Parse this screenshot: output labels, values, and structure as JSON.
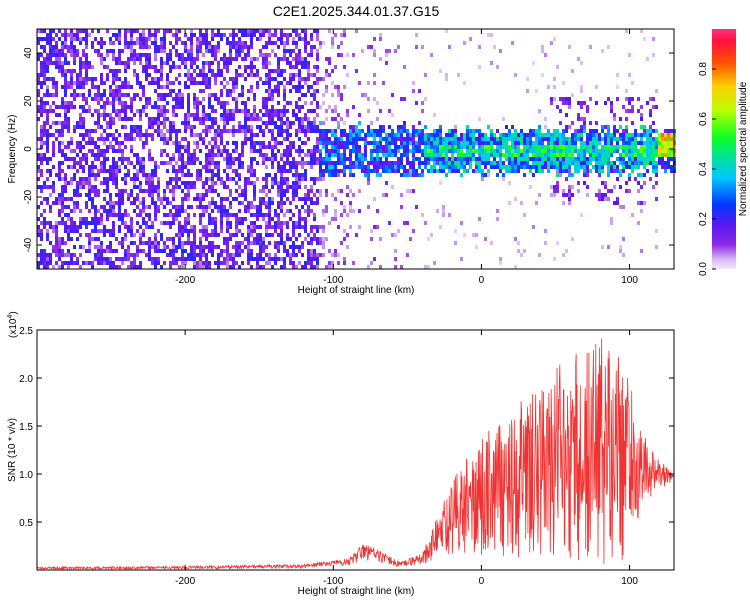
{
  "title": "C2E1.2025.344.01.37.G15",
  "chart_data": [
    {
      "type": "heatmap",
      "xlabel": "Height of straight line (km)",
      "ylabel": "Frequency (Hz)",
      "xlim": [
        -300,
        130
      ],
      "ylim": [
        -50,
        50
      ],
      "xticks": [
        -200,
        -100,
        0,
        100
      ],
      "yticks": [
        -40,
        -20,
        0,
        20,
        40
      ],
      "colorbar": {
        "label": "Normalized spectral amplitude",
        "range": [
          0,
          0.96
        ],
        "ticks": [
          "0.0",
          "0.2",
          "0.4",
          "0.6",
          "0.8"
        ],
        "tick_values": [
          0,
          0.2,
          0.4,
          0.6,
          0.8
        ]
      },
      "regions": [
        {
          "x_range": [
            -300,
            -110
          ],
          "freq_range": [
            -50,
            50
          ],
          "amplitude": "0.05-0.35"
        },
        {
          "x_range": [
            -110,
            120
          ],
          "freq_center": 0,
          "freq_halfwidth": 8,
          "amplitude": "0.2-0.6"
        },
        {
          "x_range": [
            120,
            130
          ],
          "freq_center": 2,
          "amplitude": "0.7-0.9"
        }
      ]
    },
    {
      "type": "line",
      "xlabel": "Height of straight line (km)",
      "ylabel": "SNR (10 * v/v)",
      "y_multiplier": "(x10",
      "y_multiplier_exp": "4",
      "y_multiplier_close": ")",
      "xlim": [
        -300,
        130
      ],
      "ylim": [
        0,
        2.5
      ],
      "xticks": [
        -200,
        -100,
        0,
        100
      ],
      "yticks": [
        0.5,
        1.0,
        1.5,
        2.0,
        2.5
      ],
      "ytick_labels": [
        "0.5",
        "1.0",
        "1.5",
        "2.0",
        "2.5"
      ],
      "color": "#f03232",
      "series_envelope": {
        "x": [
          -300,
          -200,
          -120,
          -90,
          -80,
          -70,
          -55,
          -40,
          -30,
          -20,
          -10,
          0,
          10,
          20,
          30,
          40,
          50,
          60,
          70,
          80,
          90,
          100,
          105,
          110,
          120,
          130
        ],
        "upper": [
          0.03,
          0.04,
          0.06,
          0.12,
          0.28,
          0.22,
          0.08,
          0.18,
          0.55,
          0.9,
          1.2,
          1.4,
          1.5,
          1.6,
          1.9,
          1.85,
          2.1,
          2.25,
          2.3,
          2.45,
          2.35,
          2.1,
          1.6,
          1.4,
          1.15,
          1.05
        ],
        "lower": [
          0.01,
          0.01,
          0.02,
          0.05,
          0.1,
          0.08,
          0.03,
          0.06,
          0.1,
          0.1,
          0.12,
          0.15,
          0.15,
          0.12,
          0.1,
          0.08,
          0.08,
          0.06,
          0.05,
          0.05,
          0.05,
          0.05,
          0.4,
          0.7,
          0.85,
          0.9
        ]
      }
    }
  ]
}
